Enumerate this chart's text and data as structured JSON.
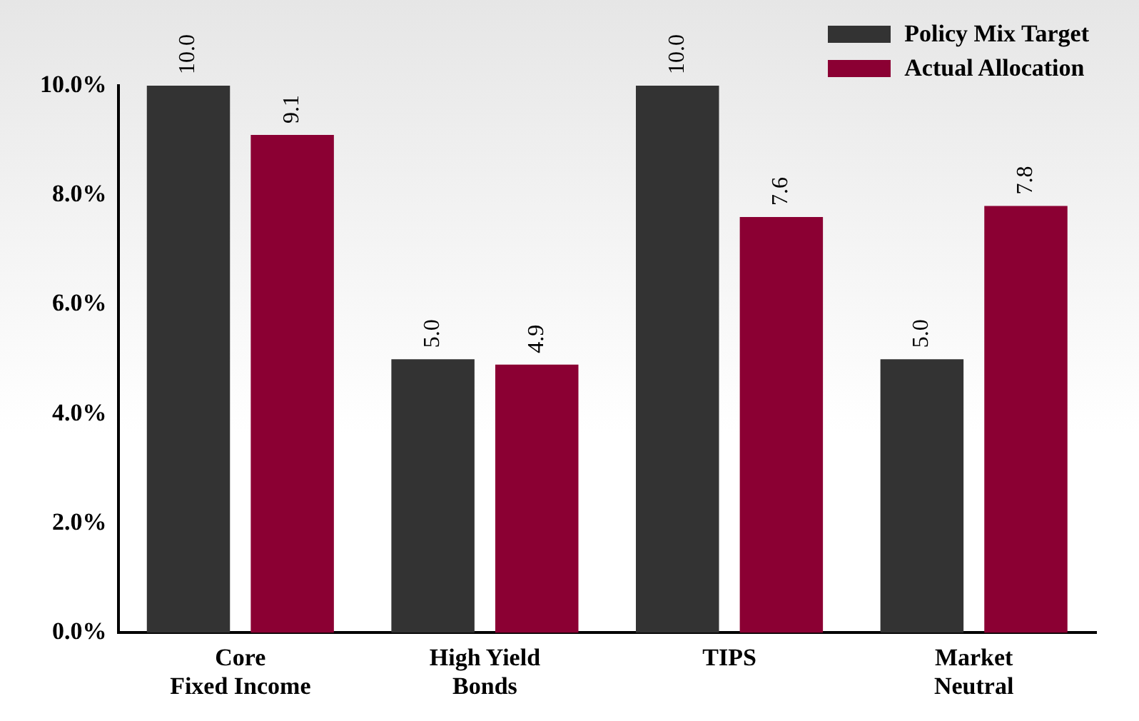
{
  "chart_data": {
    "type": "bar",
    "categories": [
      "Core\nFixed Income",
      "High Yield\nBonds",
      "TIPS",
      "Market\nNeutral"
    ],
    "series": [
      {
        "name": "Policy Mix Target",
        "color": "#333333",
        "values": [
          10.0,
          5.0,
          10.0,
          5.0
        ],
        "value_labels": [
          "10.0",
          "5.0",
          "10.0",
          "5.0"
        ]
      },
      {
        "name": "Actual Allocation",
        "color": "#8b0033",
        "values": [
          9.1,
          4.9,
          7.6,
          7.8
        ],
        "value_labels": [
          "9.1",
          "4.9",
          "7.6",
          "7.8"
        ]
      }
    ],
    "ylim": [
      0,
      10
    ],
    "yticks": [
      {
        "value": 0,
        "label": "0.0%"
      },
      {
        "value": 2,
        "label": "2.0%"
      },
      {
        "value": 4,
        "label": "4.0%"
      },
      {
        "value": 6,
        "label": "6.0%"
      },
      {
        "value": 8,
        "label": "8.0%"
      },
      {
        "value": 10,
        "label": "10.0%"
      }
    ],
    "grid": false,
    "legend": "top right"
  }
}
